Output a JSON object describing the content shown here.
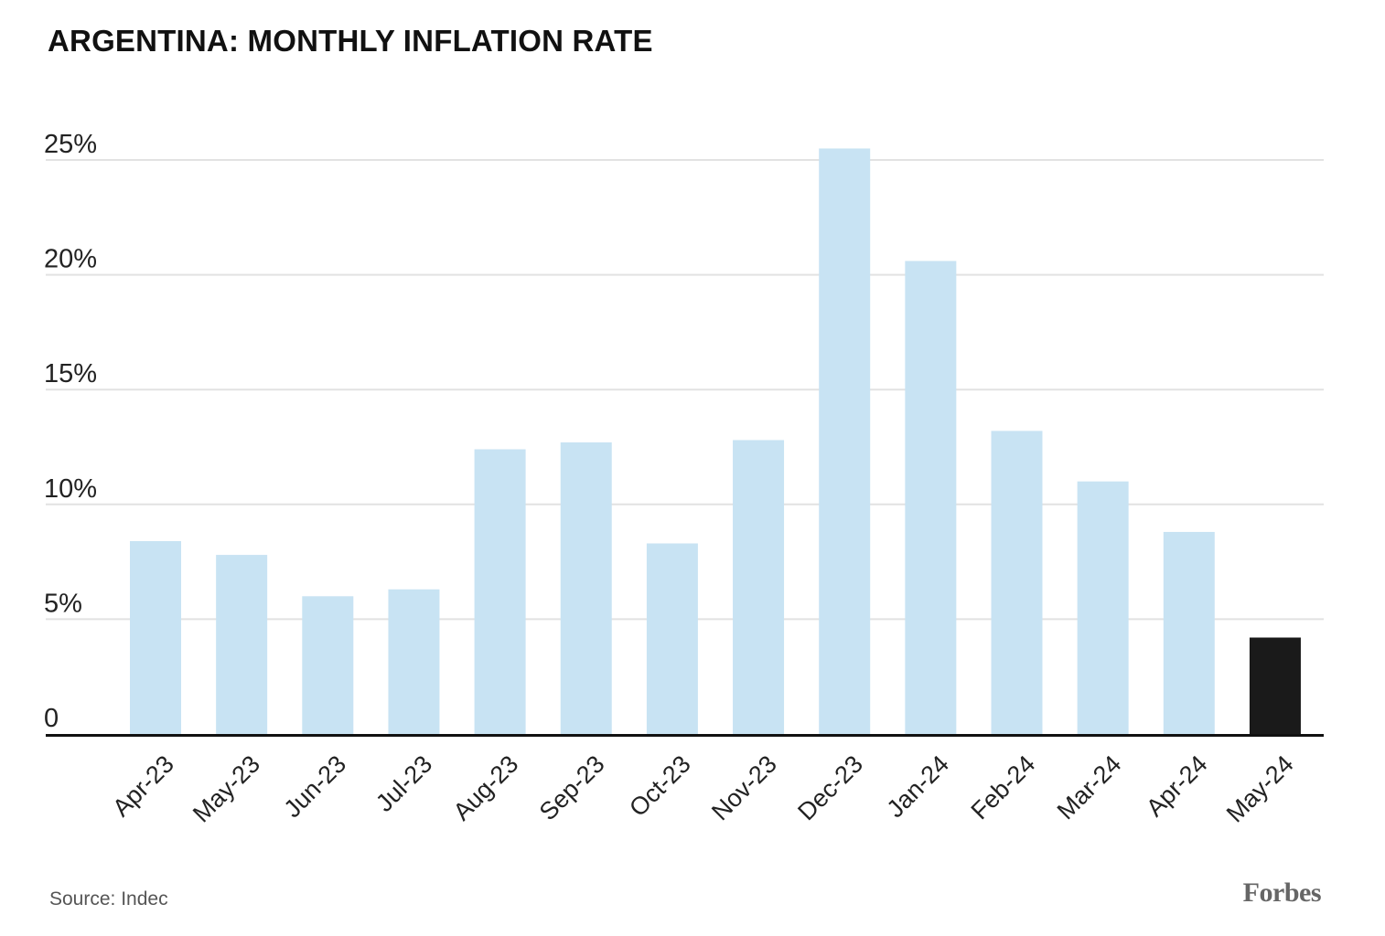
{
  "chart_data": {
    "type": "bar",
    "title": "ARGENTINA: MONTHLY INFLATION RATE",
    "categories": [
      "Apr-23",
      "May-23",
      "Jun-23",
      "Jul-23",
      "Aug-23",
      "Sep-23",
      "Oct-23",
      "Nov-23",
      "Dec-23",
      "Jan-24",
      "Feb-24",
      "Mar-24",
      "Apr-24",
      "May-24"
    ],
    "values": [
      8.4,
      7.8,
      6.0,
      6.3,
      12.4,
      12.7,
      8.3,
      12.8,
      25.5,
      20.6,
      13.2,
      11.0,
      8.8,
      4.2
    ],
    "ylim": [
      0,
      25
    ],
    "yticks": [
      0,
      5,
      10,
      15,
      20,
      25
    ],
    "ytick_labels": [
      "0",
      "5%",
      "10%",
      "15%",
      "20%",
      "25%"
    ],
    "xlabel": "",
    "ylabel": "",
    "grid": true,
    "colors": {
      "bar": "#c8e3f3",
      "highlight": "#1a1a1a",
      "grid": "#e2e2e2",
      "axis": "#111111"
    },
    "highlight_index": 13
  },
  "footer": {
    "source": "Source: Indec",
    "brand": "Forbes"
  }
}
